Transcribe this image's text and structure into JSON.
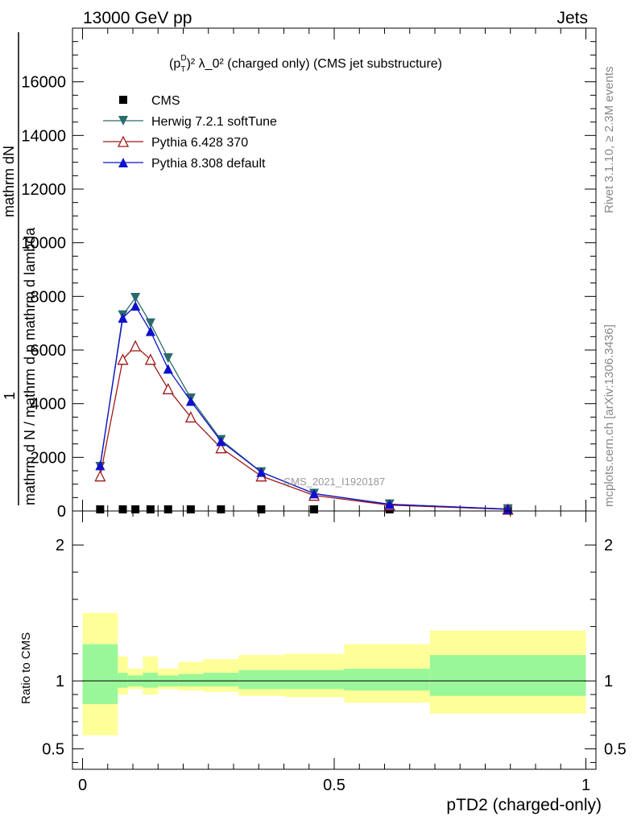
{
  "header": {
    "left": "13000 GeV pp",
    "right": "Jets"
  },
  "side_labels": {
    "rivet": "Rivet 3.1.10, ≥ 2.3M events",
    "mcplots": "mcplots.cern.ch [arXiv:1306.3436]"
  },
  "watermark": "CMS_2021_I1920187",
  "chart_data": [
    {
      "type": "line",
      "title_main": "(p",
      "title_sub": "T",
      "title_sup": "D",
      "title_rest": ")² λ_0² (charged only) (CMS jet substructure)",
      "title": "(p_T^D)^2 λ_0^2 (charged only) (CMS jet substructure)",
      "ylabel_lines": [
        "1",
        "mathrm d N / mathrm d p mathrm d lambda",
        "mathrm d²N / mathrm d p mathrm d lambda",
        "mathrm dN"
      ],
      "ylabel": "1/N dN/dp dlambda",
      "xlim": [
        -0.02,
        1.02
      ],
      "ylim": [
        0,
        18000
      ],
      "yticks": [
        0,
        2000,
        4000,
        6000,
        8000,
        10000,
        12000,
        14000,
        16000
      ],
      "ytick_labels": [
        "0",
        "2000",
        "4000",
        "6000",
        "8000",
        "10000",
        "12000",
        "14000",
        "16000"
      ],
      "legend_position": "top-left",
      "series": [
        {
          "name": "CMS",
          "color": "#000000",
          "marker": "square",
          "x": [
            0.035,
            0.08,
            0.105,
            0.135,
            0.17,
            0.215,
            0.275,
            0.355,
            0.46,
            0.61,
            0.845
          ],
          "y": [
            8,
            12,
            15,
            12,
            10,
            8,
            6,
            4,
            3,
            2,
            1
          ]
        },
        {
          "name": "Herwig 7.2.1 softTune",
          "color": "#2a6b6b",
          "marker": "triangle-down",
          "x": [
            0.035,
            0.08,
            0.105,
            0.135,
            0.17,
            0.215,
            0.275,
            0.355,
            0.46,
            0.61,
            0.845
          ],
          "y": [
            1650,
            7300,
            7950,
            7000,
            5700,
            4200,
            2650,
            1450,
            650,
            250,
            70
          ]
        },
        {
          "name": "Pythia 6.428 370",
          "color": "#a01818",
          "marker": "triangle-open",
          "x": [
            0.035,
            0.08,
            0.105,
            0.135,
            0.17,
            0.215,
            0.275,
            0.355,
            0.46,
            0.61,
            0.845
          ],
          "y": [
            1300,
            5650,
            6150,
            5650,
            4550,
            3500,
            2350,
            1300,
            580,
            220,
            60
          ]
        },
        {
          "name": "Pythia 8.308 default",
          "color": "#1010cc",
          "marker": "triangle-up",
          "x": [
            0.035,
            0.08,
            0.105,
            0.135,
            0.17,
            0.215,
            0.275,
            0.355,
            0.46,
            0.61,
            0.845
          ],
          "y": [
            1700,
            7200,
            7650,
            6700,
            5300,
            4100,
            2600,
            1450,
            650,
            250,
            70
          ]
        }
      ]
    },
    {
      "type": "area",
      "ylabel": "Ratio to CMS",
      "xlabel": "pTD2 (charged-only)",
      "xlim": [
        -0.02,
        1.02
      ],
      "ylim": [
        0.35,
        2.25
      ],
      "yticks": [
        0.5,
        1,
        2
      ],
      "ytick_labels": [
        "0.5",
        "1",
        "2"
      ],
      "xticks": [
        0,
        0.5,
        1
      ],
      "xtick_labels": [
        "0",
        "0.5",
        "1"
      ],
      "reference_line": 1,
      "bands": {
        "edges": [
          0,
          0.07,
          0.09,
          0.12,
          0.15,
          0.19,
          0.24,
          0.31,
          0.4,
          0.52,
          0.69,
          1.0
        ],
        "inner_color": "#99f799",
        "outer_color": "#ffff99",
        "inner_low": [
          0.83,
          0.95,
          0.96,
          0.95,
          0.96,
          0.96,
          0.96,
          0.94,
          0.94,
          0.93,
          0.89
        ],
        "inner_high": [
          1.27,
          1.06,
          1.04,
          1.06,
          1.04,
          1.05,
          1.06,
          1.08,
          1.08,
          1.09,
          1.19
        ],
        "outer_low": [
          0.6,
          0.9,
          0.94,
          0.9,
          0.94,
          0.93,
          0.92,
          0.89,
          0.88,
          0.84,
          0.76
        ],
        "outer_high": [
          1.5,
          1.18,
          1.09,
          1.18,
          1.09,
          1.14,
          1.16,
          1.19,
          1.2,
          1.27,
          1.37
        ]
      }
    }
  ]
}
